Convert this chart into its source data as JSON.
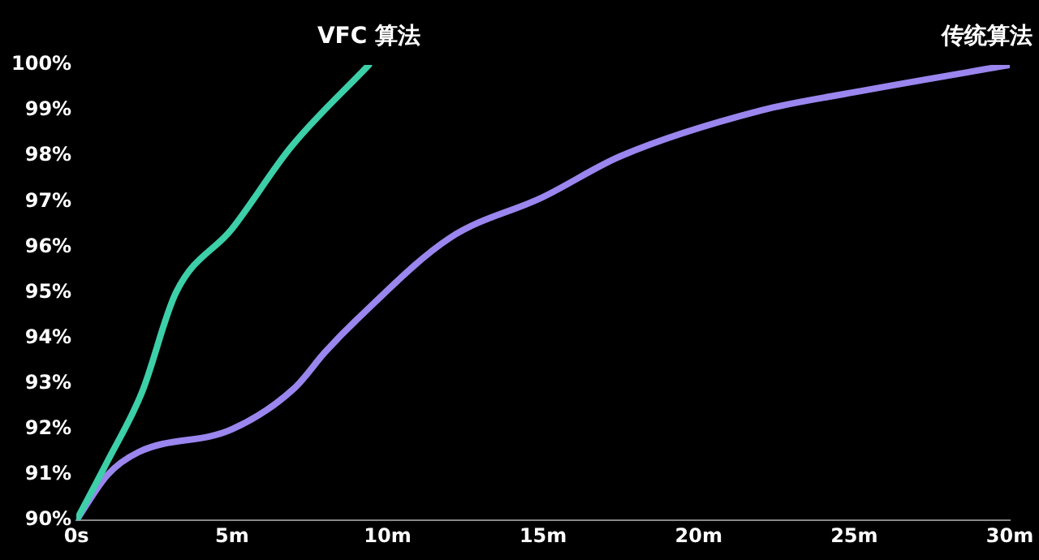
{
  "chart_data": {
    "type": "line",
    "xlim": [
      0,
      30
    ],
    "xticks": [
      {
        "value": 0,
        "label": "0s"
      },
      {
        "value": 5,
        "label": "5m"
      },
      {
        "value": 10,
        "label": "10m"
      },
      {
        "value": 15,
        "label": "15m"
      },
      {
        "value": 20,
        "label": "20m"
      },
      {
        "value": 25,
        "label": "25m"
      },
      {
        "value": 30,
        "label": "30m"
      }
    ],
    "ylim": [
      90,
      100
    ],
    "yticks": [
      {
        "value": 90,
        "label": "90%"
      },
      {
        "value": 91,
        "label": "91%"
      },
      {
        "value": 92,
        "label": "92%"
      },
      {
        "value": 93,
        "label": "93%"
      },
      {
        "value": 94,
        "label": "94%"
      },
      {
        "value": 95,
        "label": "95%"
      },
      {
        "value": 96,
        "label": "96%"
      },
      {
        "value": 97,
        "label": "97%"
      },
      {
        "value": 98,
        "label": "98%"
      },
      {
        "value": 99,
        "label": "99%"
      },
      {
        "value": 100,
        "label": "100%"
      }
    ],
    "grid": false,
    "legend": false,
    "marker": "none",
    "line_style": "solid",
    "series": [
      {
        "name": "VFC 算法",
        "color": "#3ccfa8",
        "x": [
          0,
          1,
          2.1,
          3.2,
          5,
          6.9,
          9.4
        ],
        "values": [
          90,
          91.3,
          92.8,
          95,
          96.4,
          98.2,
          100
        ]
      },
      {
        "name": "传统算法",
        "color": "#9a86ee",
        "x": [
          0,
          1,
          2,
          5,
          7,
          8,
          9,
          12,
          15,
          17.5,
          22,
          25,
          30
        ],
        "values": [
          90,
          91,
          91.5,
          92,
          92.9,
          93.7,
          94.4,
          96.2,
          97.1,
          98,
          99,
          99.4,
          100
        ]
      }
    ]
  }
}
